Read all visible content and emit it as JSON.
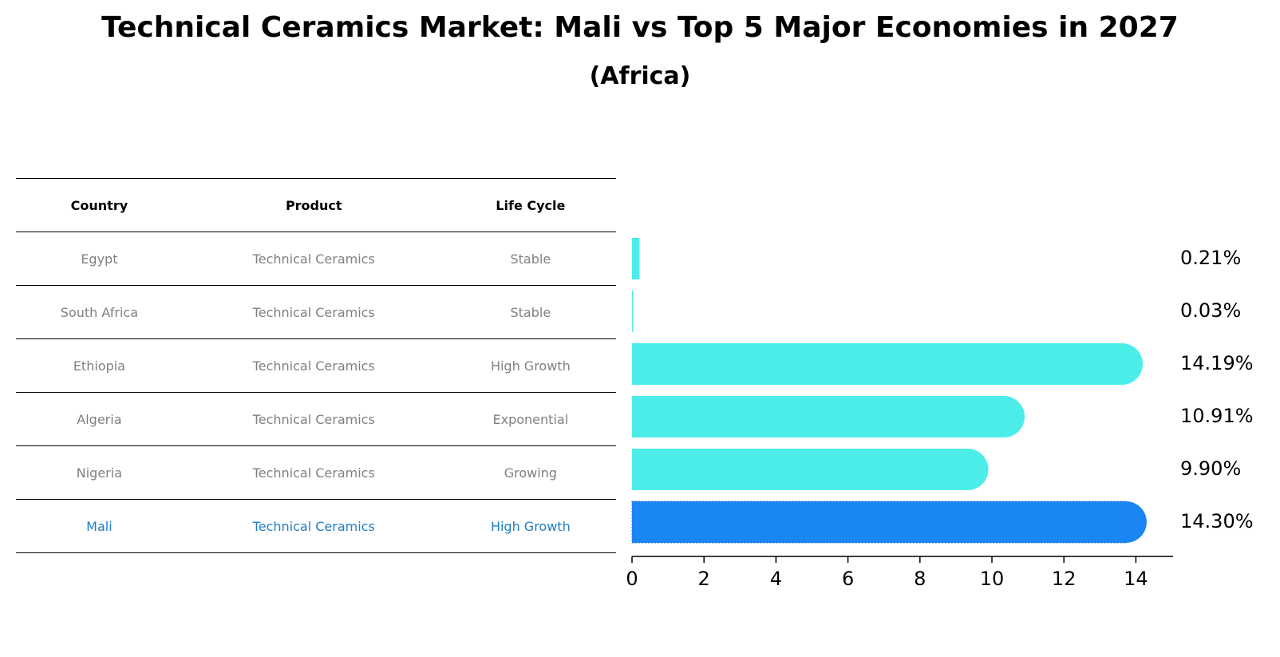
{
  "title": "Technical Ceramics Market: Mali vs Top 5 Major Economies in 2027",
  "subtitle": "(Africa)",
  "table": {
    "headers": [
      "Country",
      "Product",
      "Life Cycle"
    ],
    "rows": [
      {
        "country": "Egypt",
        "product": "Technical Ceramics",
        "life_cycle": "Stable"
      },
      {
        "country": "South Africa",
        "product": "Technical Ceramics",
        "life_cycle": "Stable"
      },
      {
        "country": "Ethiopia",
        "product": "Technical Ceramics",
        "life_cycle": "High Growth"
      },
      {
        "country": "Algeria",
        "product": "Technical Ceramics",
        "life_cycle": "Exponential"
      },
      {
        "country": "Nigeria",
        "product": "Technical Ceramics",
        "life_cycle": "Growing"
      },
      {
        "country": "Mali",
        "product": "Technical Ceramics",
        "life_cycle": "High Growth"
      }
    ]
  },
  "chart_data": {
    "type": "bar",
    "orientation": "horizontal",
    "categories": [
      "Egypt",
      "South Africa",
      "Ethiopia",
      "Algeria",
      "Nigeria",
      "Mali"
    ],
    "values": [
      0.21,
      0.03,
      14.19,
      10.91,
      9.9,
      14.3
    ],
    "value_labels": [
      "0.21%",
      "0.03%",
      "14.19%",
      "10.91%",
      "9.90%",
      "14.30%"
    ],
    "highlight": "Mali",
    "xlim": [
      0,
      15
    ],
    "xticks": [
      0,
      2,
      4,
      6,
      8,
      10,
      12,
      14
    ],
    "colors": {
      "default": "#4cede9",
      "highlight": "#1a86f4"
    }
  }
}
